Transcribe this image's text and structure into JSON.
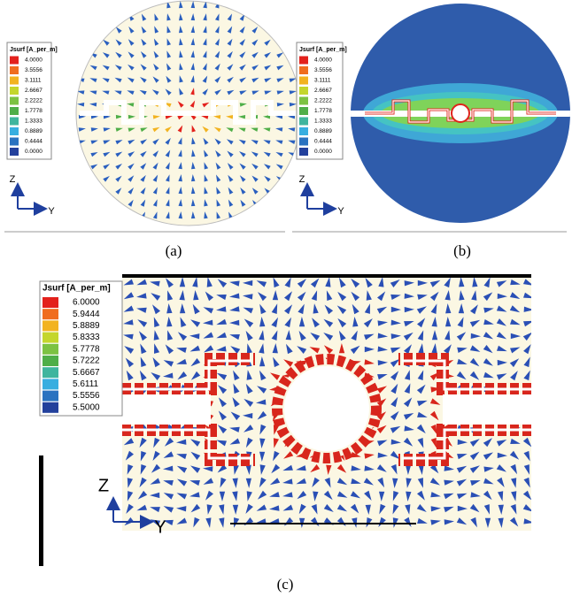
{
  "panels": [
    {
      "caption": "(a)",
      "legend": {
        "title": "Jsurf [A_per_m]",
        "values": [
          "4.0000",
          "3.5556",
          "3.1111",
          "2.6667",
          "2.2222",
          "1.7778",
          "1.3333",
          "0.8889",
          "0.4444",
          "0.0000"
        ]
      },
      "axes": {
        "vertical": "Z",
        "horizontal": "Y"
      }
    },
    {
      "caption": "(b)",
      "legend": {
        "title": "Jsurf [A_per_m]",
        "values": [
          "4.0000",
          "3.5556",
          "3.1111",
          "2.6667",
          "2.2222",
          "1.7778",
          "1.3333",
          "0.8889",
          "0.4444",
          "0.0000"
        ]
      },
      "axes": {
        "vertical": "Z",
        "horizontal": "Y"
      }
    },
    {
      "caption": "(c)",
      "legend": {
        "title": "Jsurf [A_per_m]",
        "values": [
          "6.0000",
          "5.9444",
          "5.8889",
          "5.8333",
          "5.7778",
          "5.7222",
          "5.6667",
          "5.6111",
          "5.5556",
          "5.5000"
        ]
      },
      "axes": {
        "vertical": "Z",
        "horizontal": "Y"
      }
    }
  ]
}
